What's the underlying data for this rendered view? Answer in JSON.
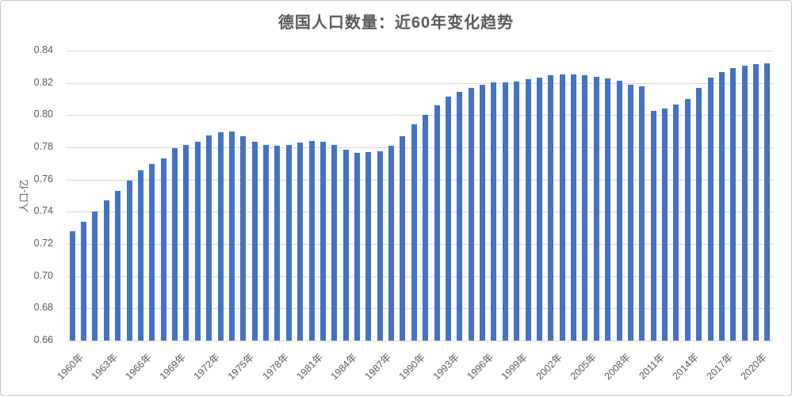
{
  "chart_data": {
    "type": "bar",
    "title": "德国人口数量：近60年变化趋势",
    "xlabel": "",
    "ylabel": "人口-亿",
    "ylim": [
      0.66,
      0.84
    ],
    "grid": true,
    "legend": "none",
    "y_ticks": [
      0.66,
      0.68,
      0.7,
      0.72,
      0.74,
      0.76,
      0.78,
      0.8,
      0.82,
      0.84
    ],
    "x_axis_labels": [
      "1960年",
      "1963年",
      "1966年",
      "1969年",
      "1972年",
      "1975年",
      "1978年",
      "1981年",
      "1984年",
      "1987年",
      "1990年",
      "1993年",
      "1996年",
      "1999年",
      "2002年",
      "2005年",
      "2008年",
      "2011年",
      "2014年",
      "2017年",
      "2020年"
    ],
    "x_label_step": 3,
    "years": [
      1960,
      1961,
      1962,
      1963,
      1964,
      1965,
      1966,
      1967,
      1968,
      1969,
      1970,
      1971,
      1972,
      1973,
      1974,
      1975,
      1976,
      1977,
      1978,
      1979,
      1980,
      1981,
      1982,
      1983,
      1984,
      1985,
      1986,
      1987,
      1988,
      1989,
      1990,
      1991,
      1992,
      1993,
      1994,
      1995,
      1996,
      1997,
      1998,
      1999,
      2000,
      2001,
      2002,
      2003,
      2004,
      2005,
      2006,
      2007,
      2008,
      2009,
      2010,
      2011,
      2012,
      2013,
      2014,
      2015,
      2016,
      2017,
      2018,
      2019,
      2020,
      2021
    ],
    "values": [
      0.7281,
      0.7338,
      0.7403,
      0.7471,
      0.7532,
      0.7596,
      0.766,
      0.7695,
      0.7733,
      0.7795,
      0.7817,
      0.7836,
      0.7872,
      0.7894,
      0.7897,
      0.7867,
      0.7834,
      0.7816,
      0.7808,
      0.7813,
      0.7829,
      0.7841,
      0.7833,
      0.7813,
      0.7786,
      0.7768,
      0.7772,
      0.7777,
      0.7812,
      0.7868,
      0.7943,
      0.8001,
      0.8062,
      0.8116,
      0.8144,
      0.8168,
      0.8191,
      0.8203,
      0.8205,
      0.821,
      0.8221,
      0.8235,
      0.8249,
      0.8253,
      0.8252,
      0.8247,
      0.8238,
      0.8227,
      0.8211,
      0.819,
      0.8178,
      0.8027,
      0.8043,
      0.8065,
      0.8098,
      0.8169,
      0.8235,
      0.8266,
      0.8291,
      0.8309,
      0.8316,
      0.832
    ]
  },
  "colors": {
    "bar": "#4472C4",
    "grid": "#D9D9D9",
    "axis_line": "#D9D9D9",
    "axis_text": "#595959",
    "title_text": "#595959",
    "border": "#C9C9C9",
    "background": "#FFFFFF"
  }
}
